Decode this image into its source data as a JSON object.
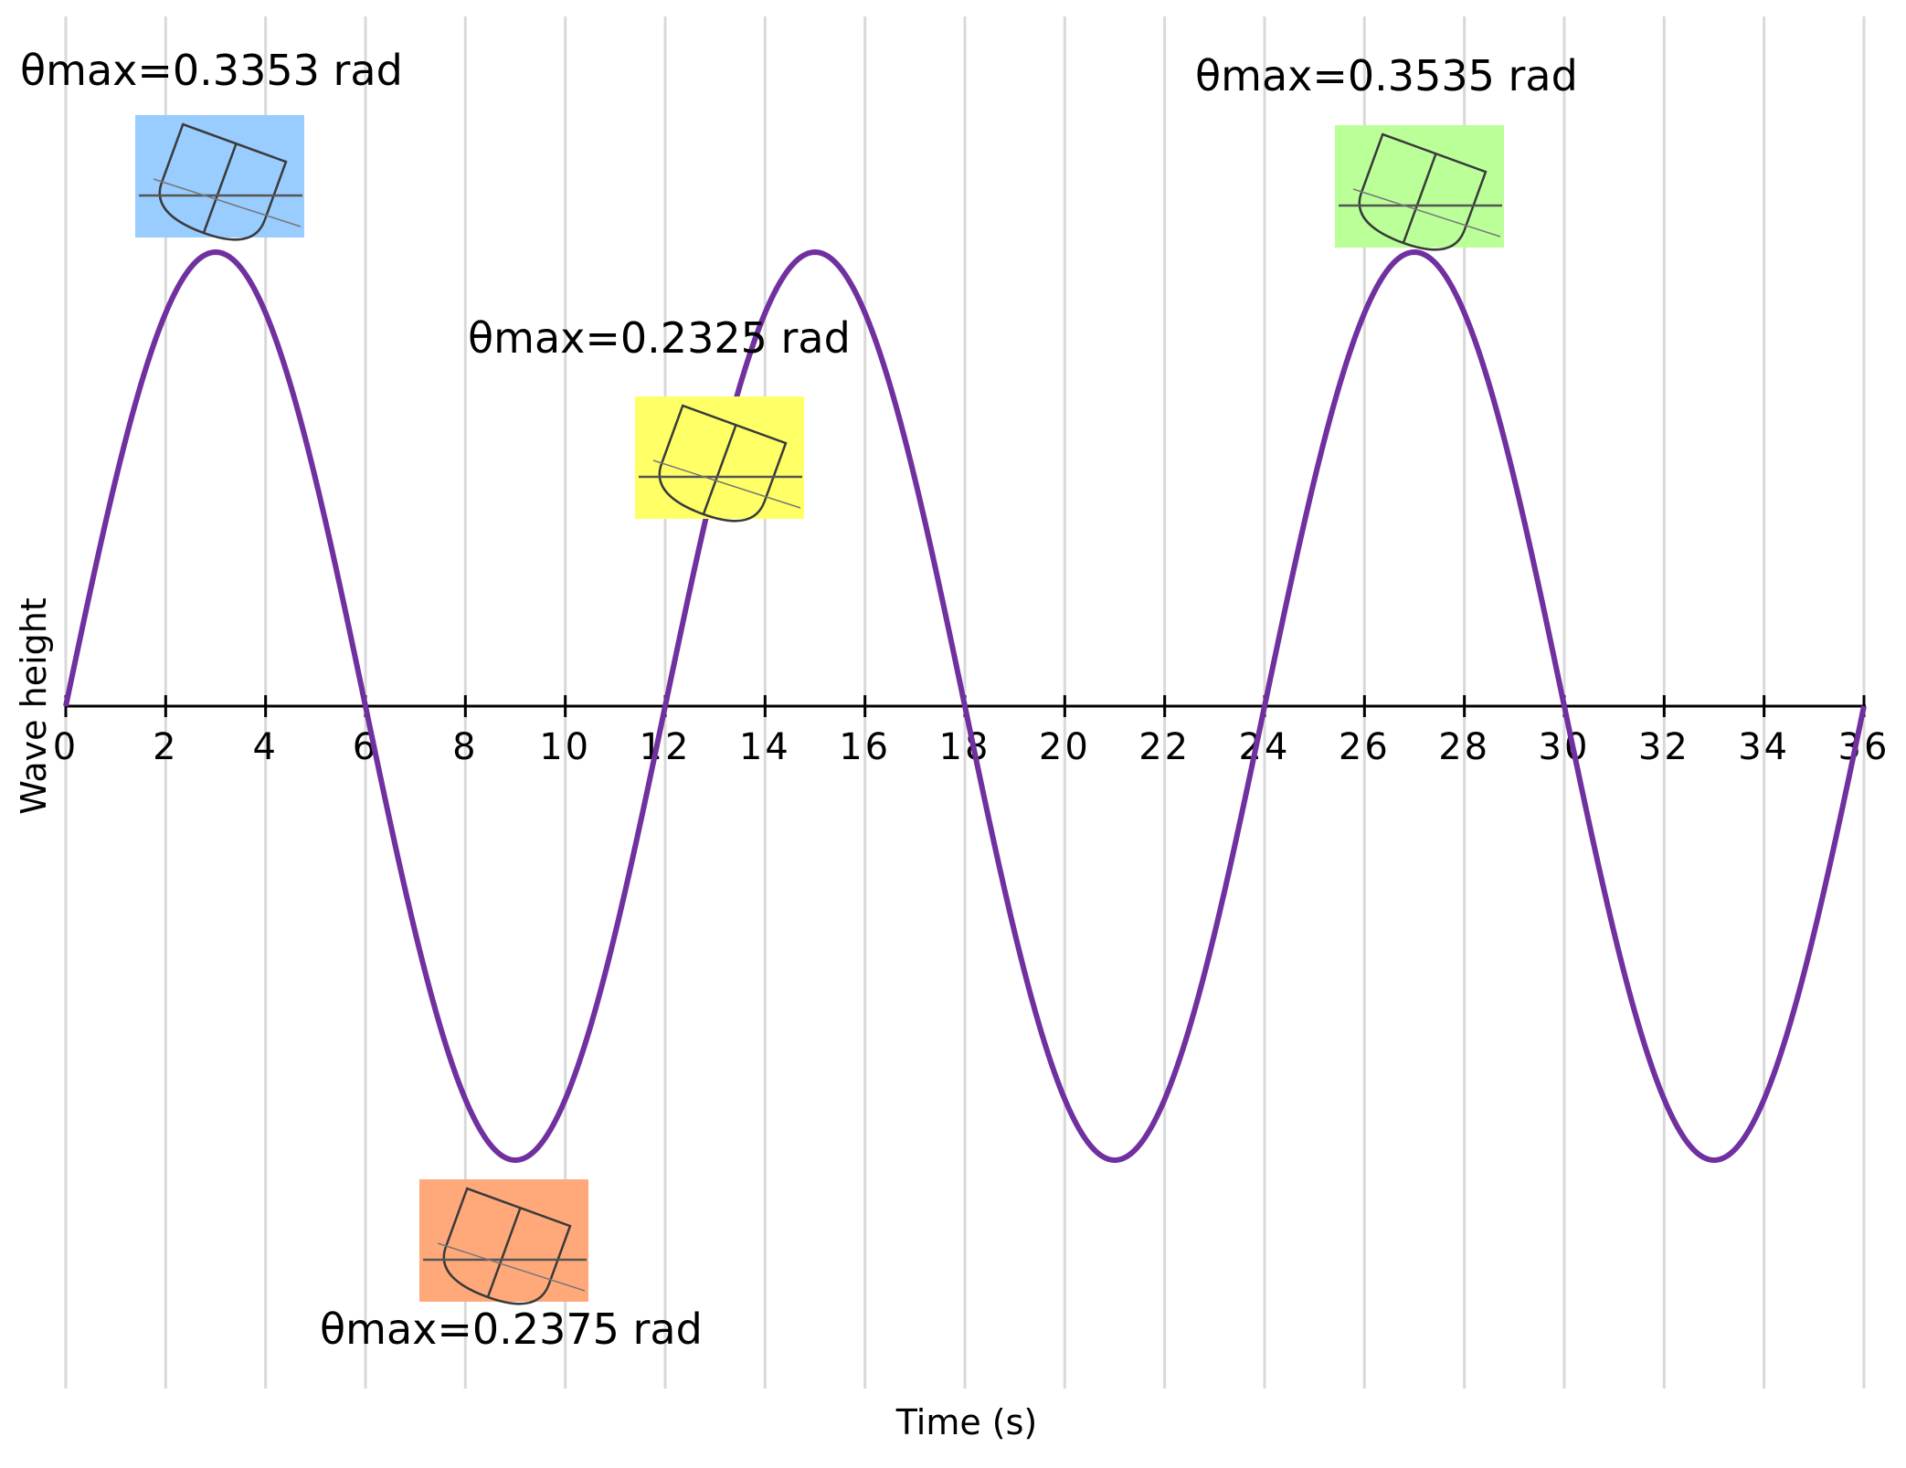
{
  "chart_data": {
    "type": "line",
    "xlabel": "Time (s)",
    "ylabel": "Wave height",
    "xlim": [
      0,
      36
    ],
    "x_ticks": [
      0,
      2,
      4,
      6,
      8,
      10,
      12,
      14,
      16,
      18,
      20,
      22,
      24,
      26,
      28,
      30,
      32,
      34,
      36
    ],
    "ylim": [
      -1.15,
      1.15
    ],
    "grid": {
      "vertical": true,
      "horizontal": false
    },
    "series": [
      {
        "color": "#7030a0",
        "period": 12,
        "amplitude": 1,
        "x": [
          0,
          3,
          6,
          9,
          12,
          15,
          18,
          21,
          24,
          27,
          30,
          33,
          36
        ],
        "y": [
          0,
          1,
          0,
          -1,
          0,
          1,
          0,
          -1,
          0,
          1,
          0,
          -1,
          0
        ]
      }
    ],
    "annotations": [
      {
        "text": "θmax=0.3353 rad",
        "x": 3,
        "y": 1,
        "color": "#99ccff"
      },
      {
        "text": "θmax=0.2375 rad",
        "x": 9,
        "y": -1,
        "color": "#ffa97a"
      },
      {
        "text": "θmax=0.2325 rad",
        "x": 13,
        "y": 0.5,
        "color": "#ffff66"
      },
      {
        "text": "θmax=0.3535 rad",
        "x": 27,
        "y": 1,
        "color": "#bbff99"
      }
    ]
  }
}
